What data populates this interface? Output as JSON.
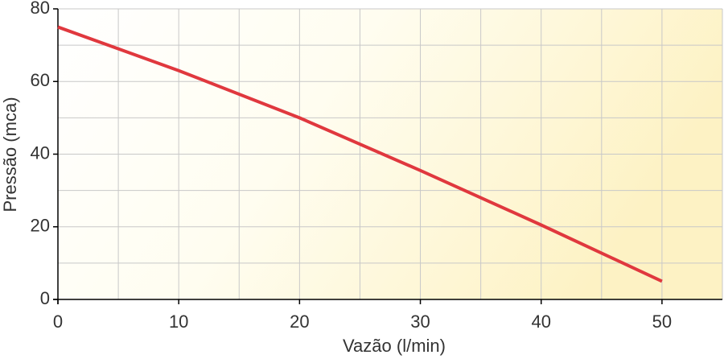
{
  "chart_data": {
    "type": "line",
    "x_label": "Vazão (l/min)",
    "y_label": "Pressão (mca)",
    "x": [
      0,
      10,
      20,
      30,
      40,
      50
    ],
    "series": [
      {
        "color": "#e0383e",
        "values": [
          75,
          63,
          50,
          35.5,
          20.5,
          5
        ]
      }
    ],
    "xlim": [
      0,
      55
    ],
    "ylim": [
      0,
      80
    ],
    "xticks": [
      0,
      10,
      20,
      30,
      40,
      50
    ],
    "yticks": [
      0,
      20,
      40,
      60,
      80
    ],
    "xgrid": [
      5,
      10,
      15,
      20,
      25,
      30,
      35,
      40,
      45,
      50,
      55
    ],
    "ygrid": [
      10,
      20,
      30,
      40,
      50,
      60,
      70,
      80
    ],
    "grid": true
  }
}
